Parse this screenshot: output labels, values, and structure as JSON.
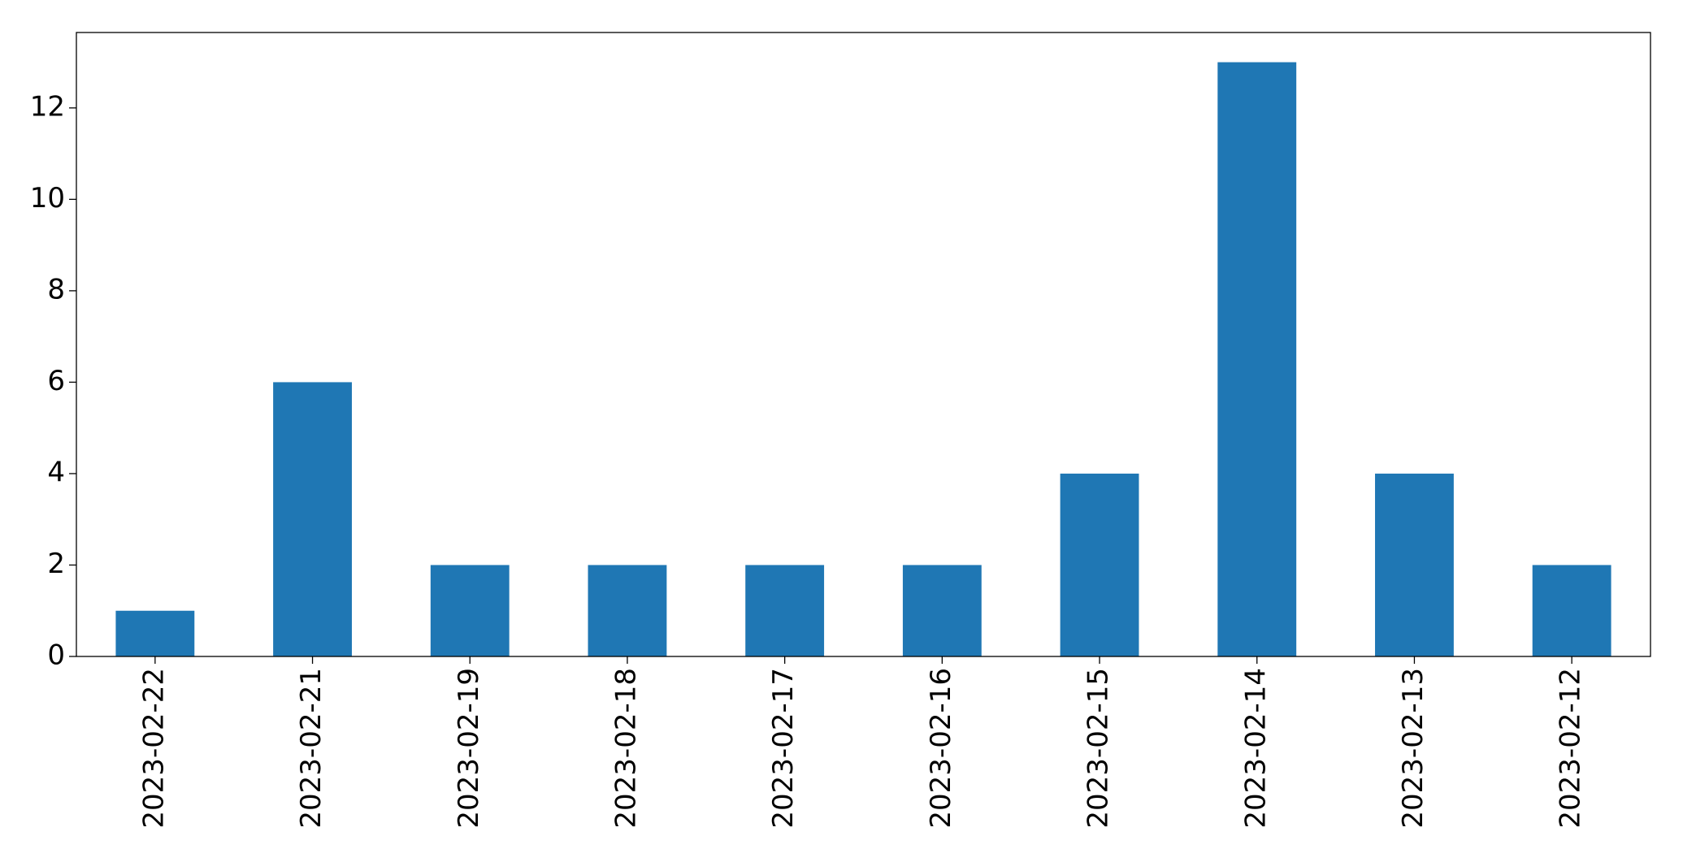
{
  "chart_data": {
    "type": "bar",
    "categories": [
      "2023-02-22",
      "2023-02-21",
      "2023-02-19",
      "2023-02-18",
      "2023-02-17",
      "2023-02-16",
      "2023-02-15",
      "2023-02-14",
      "2023-02-13",
      "2023-02-12"
    ],
    "values": [
      1,
      6,
      2,
      2,
      2,
      2,
      4,
      13,
      4,
      2
    ],
    "color": "#1f77b4",
    "ylim": [
      0,
      13.65
    ],
    "yticks": [
      0,
      2,
      4,
      6,
      8,
      10,
      12
    ],
    "grid": false
  }
}
